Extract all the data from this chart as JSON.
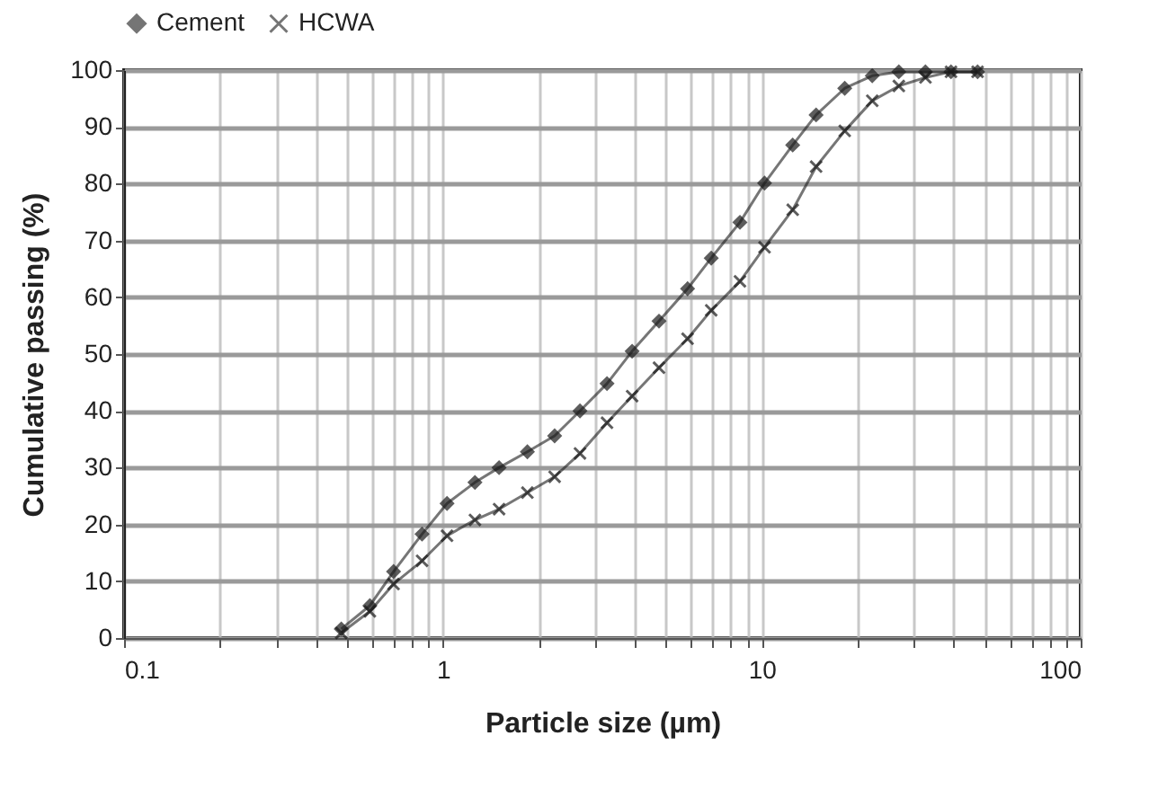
{
  "chart_data": {
    "type": "line",
    "xlabel": "Particle size (µm)",
    "ylabel": "Cumulative passing (%)",
    "x": [
      0.48,
      0.59,
      0.7,
      0.86,
      1.03,
      1.26,
      1.5,
      1.84,
      2.24,
      2.69,
      3.27,
      3.92,
      4.76,
      5.85,
      6.94,
      8.54,
      10.2,
      12.5,
      14.8,
      18.2,
      22.2,
      26.9,
      32.6,
      39.2,
      47.5
    ],
    "series": [
      {
        "name": "Cement",
        "color": "#1a1a1a",
        "marker": "diamond",
        "values": [
          1.6,
          5.7,
          11.7,
          18.3,
          23.7,
          27.4,
          30,
          32.8,
          35.6,
          40,
          44.8,
          50.5,
          55.8,
          61.5,
          66.9,
          73.2,
          80.1,
          86.8,
          92.1,
          96.8,
          99,
          99.7,
          99.7,
          99.7,
          99.7
        ]
      },
      {
        "name": "HCWA",
        "color": "#1a1a1a",
        "marker": "cross",
        "values": [
          0.9,
          4.7,
          9.5,
          13.6,
          18,
          20.8,
          22.7,
          25.6,
          28.4,
          32.5,
          37.9,
          42.6,
          47.6,
          52.7,
          57.7,
          62.8,
          68.8,
          75.4,
          83,
          89.3,
          94.6,
          97.2,
          98.7,
          99.7,
          99.7
        ]
      }
    ],
    "log": "x",
    "xlim": [
      0.1,
      100
    ],
    "xticks": [
      0.1,
      {
        "value": 0.2,
        "label": null
      },
      {
        "value": 0.3,
        "label": null
      },
      {
        "value": 0.4,
        "label": null
      },
      {
        "value": 0.5,
        "label": null
      },
      {
        "value": 0.6,
        "label": null
      },
      {
        "value": 0.7,
        "label": null
      },
      {
        "value": 0.8,
        "label": null
      },
      {
        "value": 0.9,
        "label": null
      },
      1,
      {
        "value": 2,
        "label": null
      },
      {
        "value": 3,
        "label": null
      },
      {
        "value": 4,
        "label": null
      },
      {
        "value": 5,
        "label": null
      },
      {
        "value": 6,
        "label": null
      },
      {
        "value": 7,
        "label": null
      },
      {
        "value": 8,
        "label": null
      },
      {
        "value": 9,
        "label": null
      },
      10,
      {
        "value": 20,
        "label": null
      },
      {
        "value": 30,
        "label": null
      },
      {
        "value": 40,
        "label": null
      },
      {
        "value": 50,
        "label": null
      },
      {
        "value": 60,
        "label": null
      },
      {
        "value": 70,
        "label": null
      },
      {
        "value": 80,
        "label": null
      },
      {
        "value": 90,
        "label": null
      },
      100
    ],
    "ylim": [
      0,
      100
    ],
    "yticks": [
      0,
      10,
      20,
      30,
      40,
      50,
      60,
      70,
      80,
      90,
      100
    ],
    "grid": true,
    "legend": "top",
    "line_style": "solid"
  }
}
